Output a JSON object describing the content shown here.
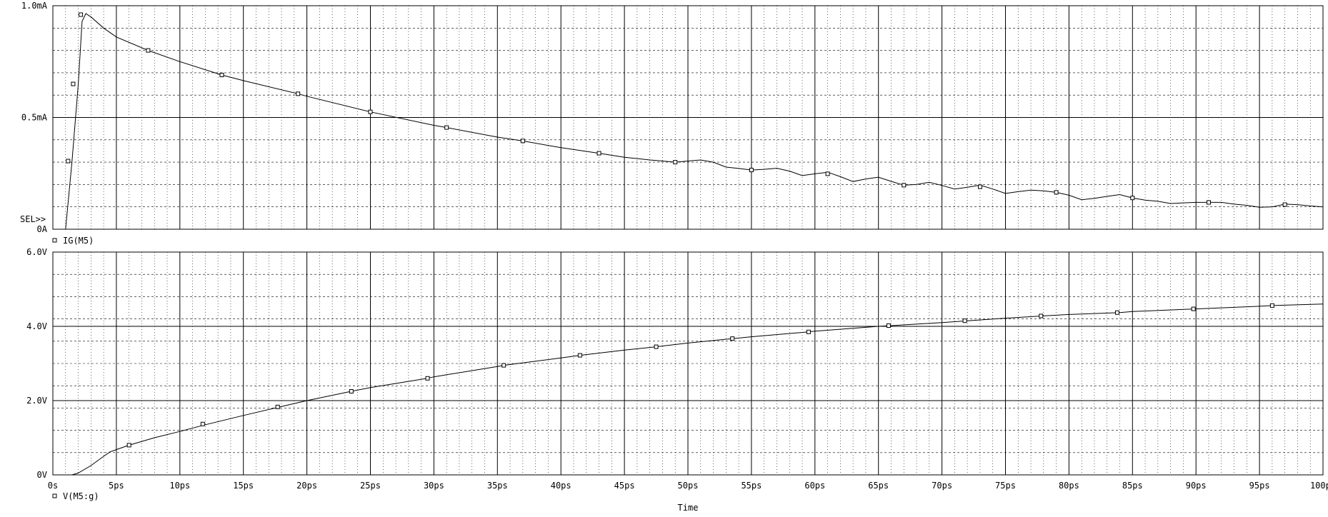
{
  "chart_data": [
    {
      "type": "line",
      "series": [
        {
          "name": "IG(M5)",
          "x": [
            1.0,
            1.5,
            2.0,
            2.3,
            2.6,
            3.0,
            4.0,
            5.0,
            7.5,
            10.0,
            13.3,
            15.0,
            19.3,
            20.0,
            25.0,
            30.0,
            31.0,
            35.0,
            37.0,
            40.0,
            43.0,
            45.0,
            47.0,
            48.0,
            49.0,
            50.0,
            51.0,
            52.0,
            53.0,
            54.0,
            55.0,
            56.0,
            57.0,
            58.0,
            59.0,
            60.0,
            61.0,
            62.0,
            63.0,
            64.0,
            65.0,
            66.0,
            67.0,
            68.0,
            69.0,
            70.0,
            71.0,
            72.0,
            73.0,
            74.0,
            75.0,
            76.0,
            77.0,
            78.0,
            79.0,
            80.0,
            81.0,
            82.0,
            83.0,
            84.0,
            85.0,
            86.0,
            87.0,
            88.0,
            89.0,
            90.0,
            91.0,
            92.0,
            93.0,
            94.0,
            95.0,
            96.0,
            97.0,
            98.0,
            99.0,
            100.0
          ],
          "y": [
            0.0,
            0.3,
            0.65,
            0.93,
            0.965,
            0.95,
            0.9,
            0.86,
            0.8,
            0.75,
            0.69,
            0.665,
            0.606,
            0.595,
            0.525,
            0.465,
            0.455,
            0.412,
            0.395,
            0.365,
            0.34,
            0.322,
            0.31,
            0.305,
            0.3,
            0.305,
            0.31,
            0.3,
            0.278,
            0.272,
            0.265,
            0.268,
            0.273,
            0.26,
            0.24,
            0.248,
            0.255,
            0.235,
            0.213,
            0.225,
            0.233,
            0.214,
            0.197,
            0.2,
            0.21,
            0.196,
            0.18,
            0.188,
            0.197,
            0.18,
            0.16,
            0.168,
            0.175,
            0.172,
            0.165,
            0.152,
            0.132,
            0.138,
            0.147,
            0.155,
            0.14,
            0.13,
            0.125,
            0.115,
            0.118,
            0.12,
            0.12,
            0.12,
            0.112,
            0.107,
            0.098,
            0.1,
            0.112,
            0.11,
            0.104,
            0.1
          ],
          "markers_x": [
            1.2,
            1.6,
            2.2,
            7.5,
            13.3,
            19.3,
            25.0,
            31.0,
            37.0,
            43.0,
            49.0,
            55.0,
            61.0,
            67.0,
            73.0,
            79.0,
            85.0,
            91.0,
            97.0
          ],
          "markers_y": [
            0.305,
            0.65,
            0.96,
            0.8,
            0.69,
            0.606,
            0.525,
            0.455,
            0.395,
            0.34,
            0.3,
            0.265,
            0.248,
            0.197,
            0.19,
            0.165,
            0.14,
            0.12,
            0.11
          ]
        }
      ],
      "ylim": [
        0,
        1.0
      ],
      "xlim": [
        0,
        100
      ],
      "y_ticks": [
        0,
        0.5,
        1.0
      ],
      "y_tick_labels": [
        "0A",
        "0.5mA",
        "1.0mA"
      ],
      "selector_label": "SEL>>",
      "grid": true,
      "legend": "bottom-left"
    },
    {
      "type": "line",
      "series": [
        {
          "name": "V(M5:g)",
          "x": [
            1.5,
            2.0,
            3.0,
            4.0,
            4.5,
            5.0,
            6.0,
            8.0,
            10.0,
            12.0,
            15.0,
            17.5,
            20.0,
            23.5,
            25.0,
            29.5,
            30.0,
            35.0,
            35.5,
            40.0,
            41.5,
            45.0,
            47.5,
            50.0,
            53.5,
            55.0,
            59.5,
            60.0,
            65.0,
            66.0,
            70.0,
            72.0,
            75.0,
            78.0,
            80.0,
            84.0,
            85.0,
            90.0,
            95.0,
            96.0,
            100.0
          ],
          "y": [
            0.0,
            0.05,
            0.25,
            0.5,
            0.62,
            0.68,
            0.8,
            1.0,
            1.17,
            1.35,
            1.6,
            1.8,
            2.0,
            2.25,
            2.35,
            2.6,
            2.64,
            2.92,
            2.95,
            3.15,
            3.22,
            3.36,
            3.45,
            3.55,
            3.67,
            3.72,
            3.85,
            3.87,
            4.0,
            4.02,
            4.1,
            4.15,
            4.22,
            4.28,
            4.32,
            4.37,
            4.4,
            4.47,
            4.54,
            4.56,
            4.6
          ],
          "markers_x": [
            6.0,
            11.8,
            17.7,
            23.5,
            29.5,
            35.5,
            41.5,
            47.5,
            53.5,
            59.5,
            65.8,
            71.8,
            77.8,
            83.8,
            89.8,
            96.0
          ],
          "markers_y": [
            0.8,
            1.37,
            1.83,
            2.25,
            2.6,
            2.95,
            3.22,
            3.45,
            3.67,
            3.85,
            4.02,
            4.15,
            4.28,
            4.37,
            4.47,
            4.56
          ]
        }
      ],
      "ylim": [
        0,
        6.0
      ],
      "xlim": [
        0,
        100
      ],
      "y_ticks": [
        0,
        2.0,
        4.0,
        6.0
      ],
      "y_tick_labels": [
        "0V",
        "2.0V",
        "4.0V",
        "6.0V"
      ],
      "x_ticks": [
        0,
        5,
        10,
        15,
        20,
        25,
        30,
        35,
        40,
        45,
        50,
        55,
        60,
        65,
        70,
        75,
        80,
        85,
        90,
        95,
        100
      ],
      "x_tick_labels": [
        "0s",
        "5ps",
        "10ps",
        "15ps",
        "20ps",
        "25ps",
        "30ps",
        "35ps",
        "40ps",
        "45ps",
        "50ps",
        "55ps",
        "60ps",
        "65ps",
        "70ps",
        "75ps",
        "80ps",
        "85ps",
        "90ps",
        "95ps",
        "100ps"
      ],
      "xlabel": "Time",
      "grid": true,
      "legend": "bottom-left"
    }
  ]
}
